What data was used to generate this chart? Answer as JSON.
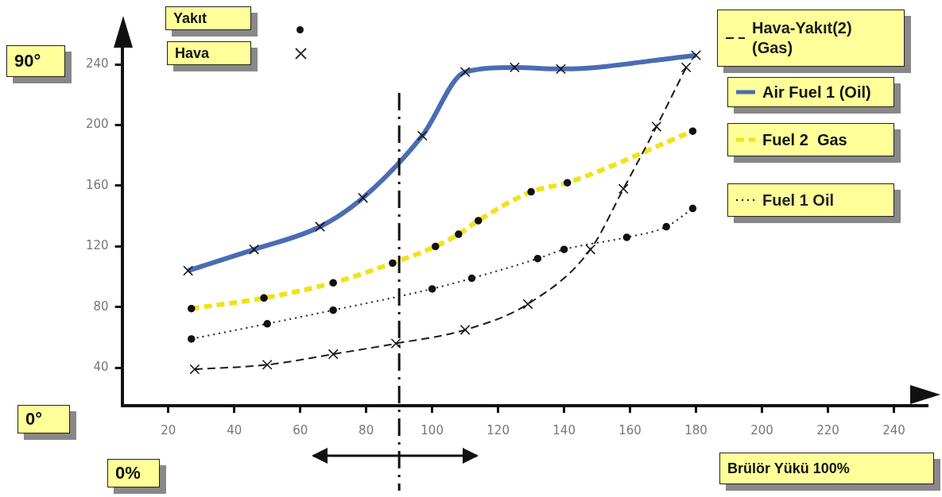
{
  "chart_data": {
    "type": "line",
    "xlim": [
      6,
      250
    ],
    "xticks": [
      20,
      40,
      60,
      80,
      100,
      120,
      140,
      160,
      180,
      200,
      220,
      240
    ],
    "ylim": [
      15,
      250
    ],
    "yticks": [
      40,
      80,
      120,
      160,
      200,
      240
    ],
    "grid": false,
    "legend": "top right",
    "series": [
      {
        "name": "Hava-Yakıt(2)\n(Gas)",
        "color": "#1a1a1a",
        "marker": "cross",
        "line_style": "dashed",
        "x": [
          28,
          50,
          70,
          89,
          110,
          129,
          148,
          158,
          168,
          177
        ],
        "values": [
          39,
          42,
          49,
          56,
          65,
          82,
          118,
          158,
          199,
          238
        ]
      },
      {
        "name": "Air Fuel 1 (Oil)",
        "color": "#4a6cb3",
        "marker": "cross",
        "line_style": "solid",
        "x": [
          26,
          46,
          66,
          79,
          97,
          110,
          125,
          139,
          180
        ],
        "values": [
          104,
          118,
          133,
          152,
          193,
          235,
          238,
          237,
          246
        ]
      },
      {
        "name": "Fuel 2  Gas",
        "color": "#f2e21c",
        "marker": "circle",
        "line_style": "dashed",
        "x": [
          27,
          49,
          70,
          88,
          101,
          108,
          114,
          130,
          141,
          179
        ],
        "values": [
          79,
          86,
          96,
          109,
          120,
          128,
          137,
          156,
          162,
          196
        ]
      },
      {
        "name": "Fuel 1 Oil",
        "color": "#222222",
        "marker": "circle",
        "line_style": "dotted",
        "x": [
          27,
          50,
          70,
          100,
          112,
          132,
          140,
          159,
          171,
          179
        ],
        "values": [
          59,
          69,
          78,
          92,
          99,
          112,
          118,
          126,
          133,
          145
        ]
      }
    ],
    "ref_lines": [
      {
        "axis": "x",
        "value": 90,
        "color": "#111111",
        "line_style": "dashed"
      }
    ],
    "annotations": [
      "Yakıt",
      "Hava",
      "90°",
      "0°",
      "0%",
      "Brülör Yükü 100%"
    ]
  }
}
